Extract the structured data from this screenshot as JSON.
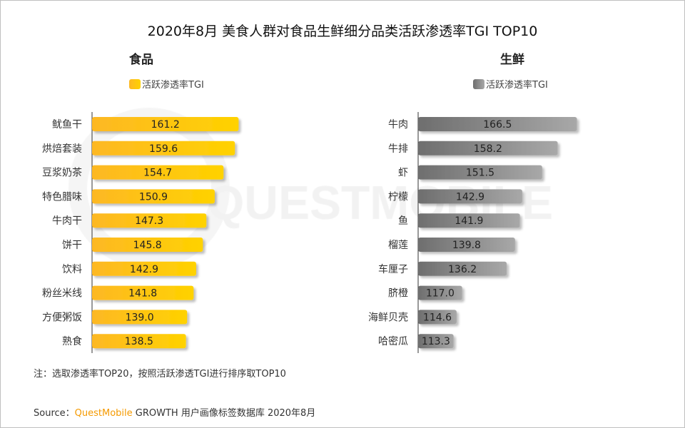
{
  "title": "2020年8月 美食人群对食品生鲜细分品类活跃渗透率TGI TOP10",
  "watermark": "QUESTMOBILE",
  "note": "注：选取渗透率TOP20，按照活跃渗透TGI进行排序取TOP10",
  "source": {
    "prefix": "Source：",
    "brand": "QuestMobile",
    "rest": " GROWTH 用户画像标签数据库 2020年8月"
  },
  "colors": {
    "food_start": "#fdb824",
    "food_end": "#ffd200",
    "fresh_start": "#6e6e6e",
    "fresh_end": "#a8a8a8",
    "brand": "#f59a00"
  },
  "chart_data": [
    {
      "type": "bar",
      "orientation": "horizontal",
      "title": "食品",
      "legend": "活跃渗透率TGI",
      "categories": [
        "鱿鱼干",
        "烘焙套装",
        "豆浆奶茶",
        "特色腊味",
        "牛肉干",
        "饼干",
        "饮料",
        "粉丝米线",
        "方便粥饭",
        "熟食"
      ],
      "series": [
        {
          "name": "活跃渗透率TGI",
          "values": [
            161.2,
            159.6,
            154.7,
            150.9,
            147.3,
            145.8,
            142.9,
            141.8,
            139.0,
            138.5
          ]
        }
      ],
      "xlim": [
        98,
        170
      ]
    },
    {
      "type": "bar",
      "orientation": "horizontal",
      "title": "生鲜",
      "legend": "活跃渗透率TGI",
      "categories": [
        "牛肉",
        "牛排",
        "虾",
        "柠檬",
        "鱼",
        "榴莲",
        "车厘子",
        "脐橙",
        "海鲜贝壳",
        "哈密瓜"
      ],
      "series": [
        {
          "name": "活跃渗透率TGI",
          "values": [
            166.5,
            158.2,
            151.5,
            142.9,
            141.9,
            139.8,
            136.2,
            117.0,
            114.6,
            113.3
          ]
        }
      ],
      "xlim": [
        98,
        170
      ]
    }
  ]
}
